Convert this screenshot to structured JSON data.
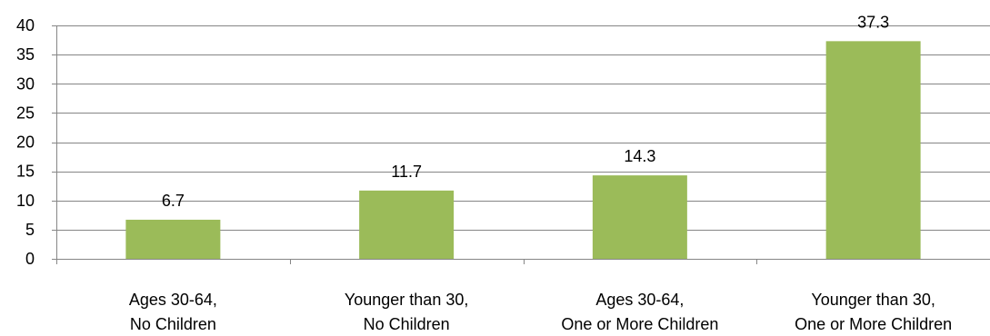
{
  "colors": {
    "bar": "#9bbb59",
    "gridline": "#868686",
    "axis": "#868686",
    "text": "#000000"
  },
  "chart_data": {
    "type": "bar",
    "categories": [
      [
        "Ages 30-64,",
        "No Children"
      ],
      [
        "Younger than 30,",
        "No Children"
      ],
      [
        "Ages 30-64,",
        "One or More Children"
      ],
      [
        "Younger than 30,",
        "One or More Children"
      ]
    ],
    "values": [
      6.7,
      11.7,
      14.3,
      37.3
    ],
    "value_labels": [
      "6.7",
      "11.7",
      "14.3",
      "37.3"
    ],
    "ylim": [
      0,
      40
    ],
    "yticks": [
      0,
      5,
      10,
      15,
      20,
      25,
      30,
      35,
      40
    ],
    "ytick_labels": [
      "0",
      "5",
      "10",
      "15",
      "20",
      "25",
      "30",
      "35",
      "40"
    ],
    "grid": true,
    "legend": "none"
  }
}
